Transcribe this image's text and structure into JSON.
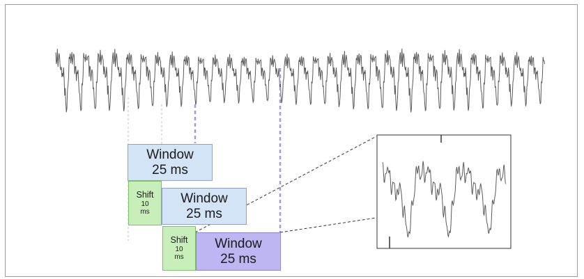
{
  "diagram": {
    "windows": [
      {
        "line1": "Window",
        "line2": "25 ms"
      },
      {
        "line1": "Window",
        "line2": "25 ms"
      },
      {
        "line1": "Window",
        "line2": "25 ms"
      }
    ],
    "shifts": [
      {
        "line1": "Shift",
        "line2": "10",
        "line3": "ms"
      },
      {
        "line1": "Shift",
        "line2": "10",
        "line3": "ms"
      }
    ],
    "colors": {
      "waveform": "#5a5a5a",
      "window_fill": "#d2e4f6",
      "window_active_fill": "#bdb6f2",
      "shift_fill": "#c8efb9",
      "dashed_purple": "#a59ad6",
      "dashed_gray": "#bdbdbd"
    }
  }
}
